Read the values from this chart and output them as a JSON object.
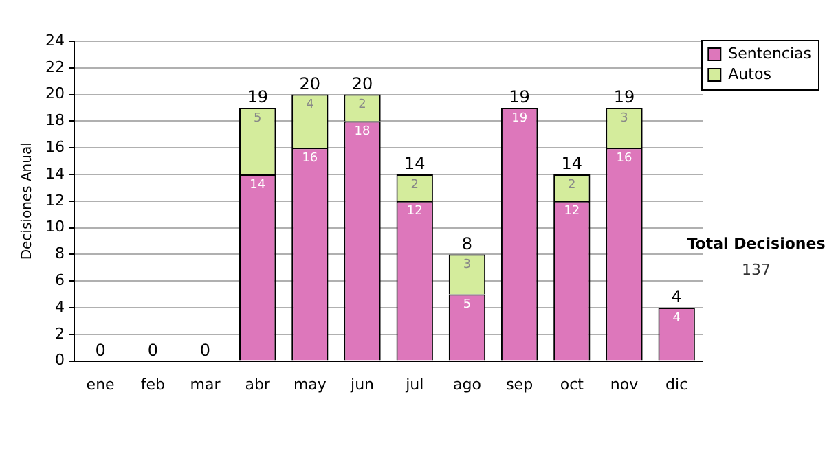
{
  "chart_data": {
    "type": "bar",
    "stacked": true,
    "ylabel": "Decisiones Anual",
    "categories": [
      "ene",
      "feb",
      "mar",
      "abr",
      "may",
      "jun",
      "jul",
      "ago",
      "sep",
      "oct",
      "nov",
      "dic"
    ],
    "series": [
      {
        "name": "Sentencias",
        "color": "#dd77bb",
        "values": [
          0,
          0,
          0,
          14,
          16,
          18,
          12,
          5,
          19,
          12,
          16,
          4
        ],
        "value_labels": [
          null,
          null,
          null,
          "14",
          "16",
          "18",
          "12",
          "5",
          "19",
          "12",
          "16",
          "4"
        ]
      },
      {
        "name": "Autos",
        "color": "#d4ec9c",
        "values": [
          0,
          0,
          0,
          5,
          4,
          2,
          2,
          3,
          0,
          2,
          3,
          0
        ],
        "value_labels": [
          null,
          null,
          null,
          "5",
          "4",
          "2",
          "2",
          "3",
          null,
          "2",
          "3",
          null
        ]
      }
    ],
    "totals": [
      "0",
      "0",
      "0",
      "19",
      "20",
      "20",
      "14",
      "8",
      "19",
      "14",
      "19",
      "4"
    ],
    "ylim": [
      0,
      24
    ],
    "yticks": [
      0,
      2,
      4,
      6,
      8,
      10,
      12,
      14,
      16,
      18,
      20,
      22,
      24
    ],
    "grid": "y",
    "legend": "right",
    "annotations": [
      "Total Decisiones",
      "137"
    ]
  }
}
